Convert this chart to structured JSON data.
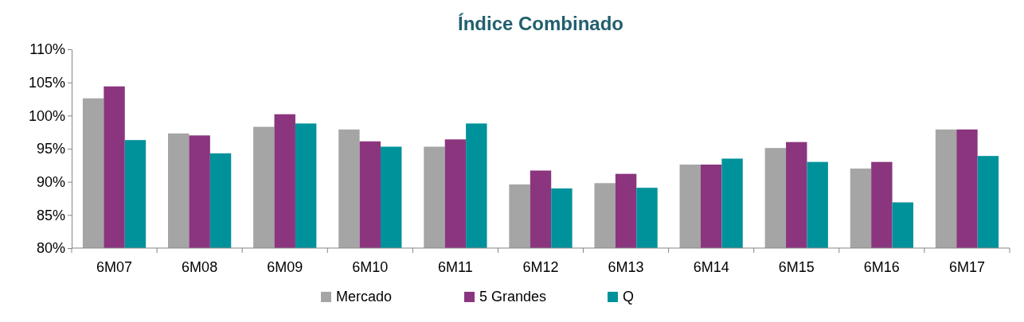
{
  "chart_data": {
    "type": "bar",
    "title": "Índice Combinado",
    "categories": [
      "6M07",
      "6M08",
      "6M09",
      "6M10",
      "6M11",
      "6M12",
      "6M13",
      "6M14",
      "6M15",
      "6M16",
      "6M17"
    ],
    "series": [
      {
        "name": "Mercado",
        "color": "#a5a5a5",
        "values": [
          102.6,
          97.3,
          98.3,
          97.9,
          95.3,
          89.6,
          89.8,
          92.6,
          95.1,
          92.0,
          97.9
        ]
      },
      {
        "name": "5 Grandes",
        "color": "#8b357e",
        "values": [
          104.4,
          97.0,
          100.2,
          96.1,
          96.4,
          91.7,
          91.2,
          92.6,
          96.0,
          93.0,
          97.9
        ]
      },
      {
        "name": "Q",
        "color": "#00929b",
        "values": [
          96.3,
          94.3,
          98.8,
          95.3,
          98.8,
          89.0,
          89.1,
          93.5,
          93.0,
          86.9,
          93.9
        ]
      }
    ],
    "ylim": [
      80,
      110
    ],
    "yticks": [
      {
        "value": 80,
        "label": "80%"
      },
      {
        "value": 85,
        "label": "85%"
      },
      {
        "value": 90,
        "label": "90%"
      },
      {
        "value": 95,
        "label": "95%"
      },
      {
        "value": 100,
        "label": "100%"
      },
      {
        "value": 105,
        "label": "105%"
      },
      {
        "value": 110,
        "label": "110%"
      }
    ],
    "grid": false,
    "legend": "bottom"
  }
}
